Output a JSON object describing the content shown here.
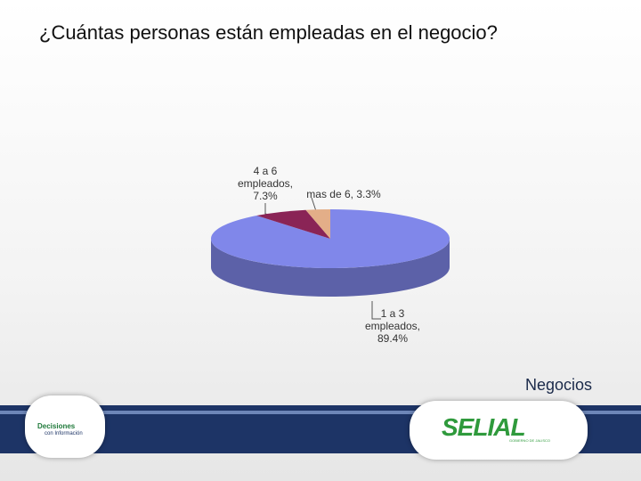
{
  "chart_data": {
    "type": "pie",
    "title": "¿Cuántas personas están empleadas en el negocio?",
    "labels": [
      "1 a 3 empleados, 89.4%",
      "4 a 6 empleados, 7.3%",
      "mas de 6, 3.3%"
    ],
    "values": [
      89.4,
      7.3,
      3.3
    ],
    "colors": [
      "#8087ea",
      "#8a2456",
      "#e3ae88"
    ]
  },
  "footer": {
    "label": "Negocios",
    "logo_left": [
      "Decisiones",
      "con Información"
    ],
    "logo_right": [
      "SELIAL",
      "GOBIERNO DE JALISCO"
    ]
  }
}
